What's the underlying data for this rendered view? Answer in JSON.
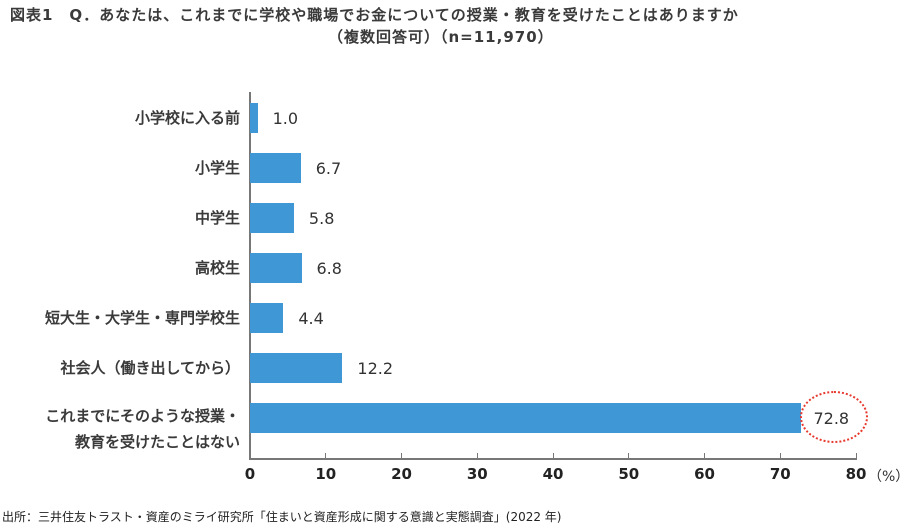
{
  "title": {
    "line1": "図表1　Q．あなたは、これまでに学校や職場でお金についての授業・教育を受けたことはありますか",
    "line2": "（複数回答可）（n=11,970）"
  },
  "chart_data": {
    "type": "bar",
    "orientation": "horizontal",
    "title": "図表1　Q．あなたは、これまでに学校や職場でお金についての授業・教育を受けたことはありますか（複数回答可）（n=11,970）",
    "categories": [
      "小学校に入る前",
      "小学生",
      "中学生",
      "高校生",
      "短大生・大学生・専門学校生",
      "社会人（働き出してから）",
      "これまでにそのような授業・教育を受けたことはない"
    ],
    "category_lines": [
      [
        "小学校に入る前"
      ],
      [
        "小学生"
      ],
      [
        "中学生"
      ],
      [
        "高校生"
      ],
      [
        "短大生・大学生・専門学校生"
      ],
      [
        "社会人（働き出してから）"
      ],
      [
        "これまでにそのような授業・",
        "教育を受けたことはない"
      ]
    ],
    "values": [
      1.0,
      6.7,
      5.8,
      6.8,
      4.4,
      12.2,
      72.8
    ],
    "value_labels": [
      "1.0",
      "6.7",
      "5.8",
      "6.8",
      "4.4",
      "12.2",
      "72.8"
    ],
    "xlabel": "",
    "ylabel": "",
    "unit": "（%）",
    "xlim": [
      0,
      80
    ],
    "xticks": [
      "0",
      "10",
      "20",
      "30",
      "40",
      "50",
      "60",
      "70",
      "80"
    ],
    "grid": false,
    "legend": null,
    "bar_color": "#3f98d5",
    "annotation": {
      "target": "72.8",
      "style": "dotted red ellipse",
      "color": "#e8392f"
    }
  },
  "source": "出所：三井住友トラスト・資産のミライ研究所「住まいと資産形成に関する意識と実態調査」(2022 年)"
}
